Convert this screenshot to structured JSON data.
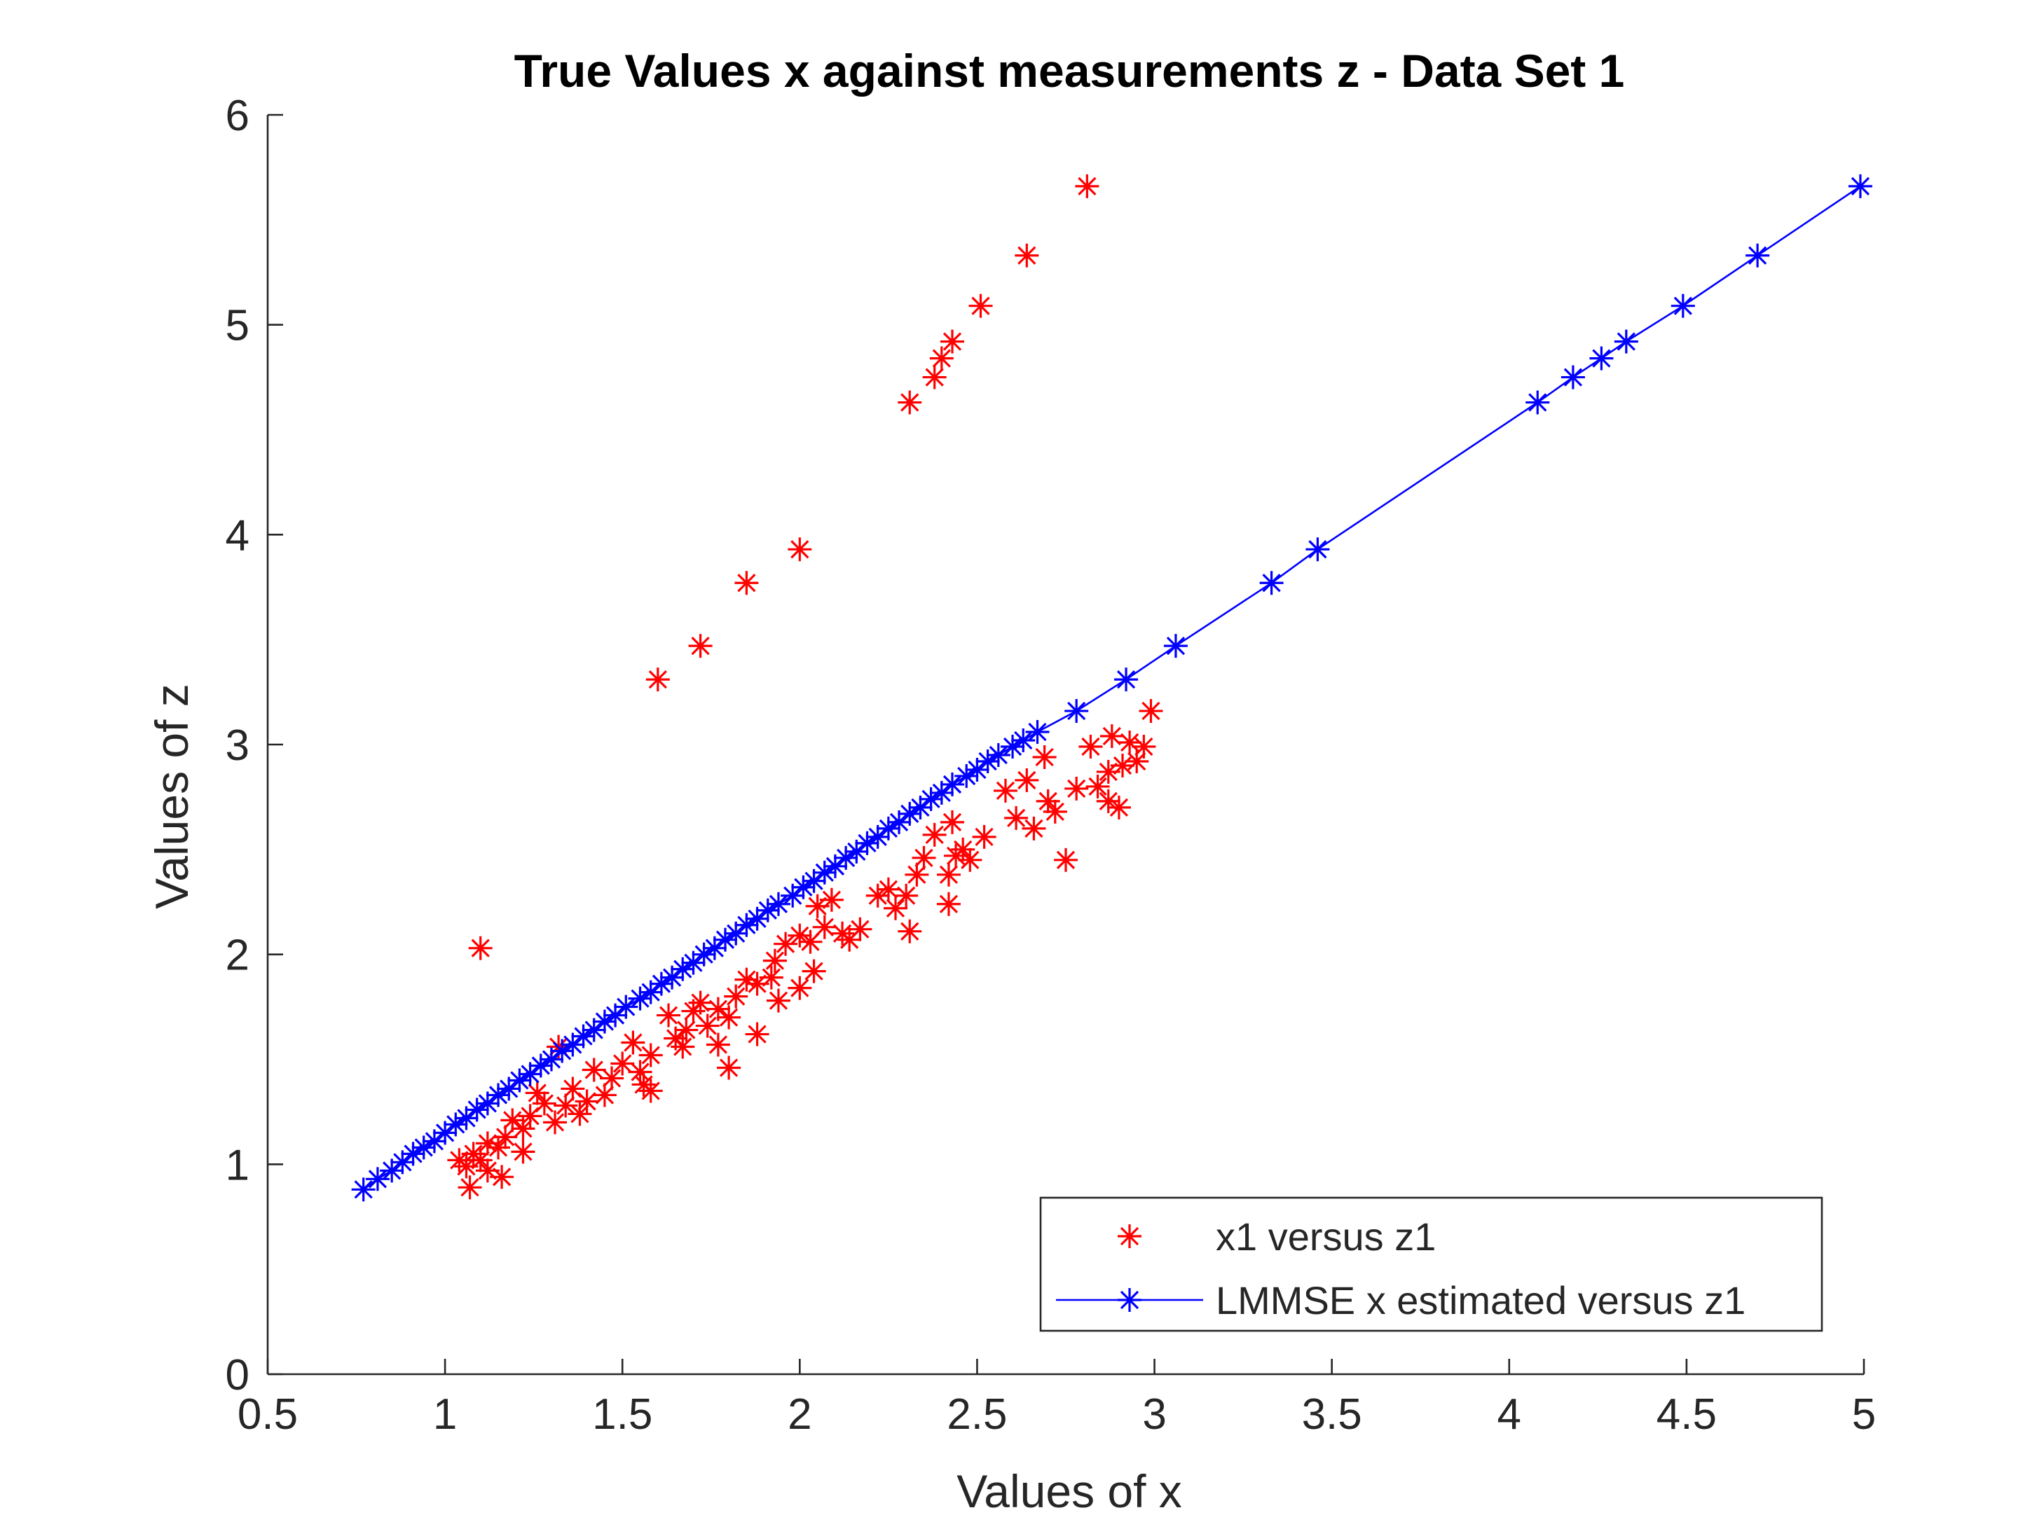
{
  "chart_data": {
    "type": "scatter",
    "title": "True Values x against measurements z - Data Set 1",
    "xlabel": "Values of x",
    "ylabel": "Values of z",
    "xlim": [
      0.5,
      5
    ],
    "ylim": [
      0,
      6
    ],
    "xticks": [
      "0.5",
      "1",
      "1.5",
      "2",
      "2.5",
      "3",
      "3.5",
      "4",
      "4.5",
      "5"
    ],
    "yticks": [
      "0",
      "1",
      "2",
      "3",
      "4",
      "5",
      "6"
    ],
    "grid": false,
    "legend_location": "bottom-right",
    "series": [
      {
        "name": "x1 versus z1",
        "color": "#ff0000",
        "marker": "asterisk",
        "line": false,
        "points": [
          [
            2.81,
            5.66
          ],
          [
            2.64,
            5.33
          ],
          [
            2.51,
            5.09
          ],
          [
            2.43,
            4.92
          ],
          [
            2.4,
            4.84
          ],
          [
            2.38,
            4.75
          ],
          [
            2.31,
            4.63
          ],
          [
            2.0,
            3.93
          ],
          [
            1.85,
            3.77
          ],
          [
            1.72,
            3.47
          ],
          [
            1.6,
            3.31
          ],
          [
            1.1,
            2.03
          ],
          [
            1.32,
            1.56
          ],
          [
            2.99,
            3.16
          ],
          [
            2.93,
            3.01
          ],
          [
            2.97,
            2.99
          ],
          [
            2.88,
            3.04
          ],
          [
            2.82,
            2.99
          ],
          [
            2.69,
            2.94
          ],
          [
            2.91,
            2.9
          ],
          [
            2.95,
            2.92
          ],
          [
            2.87,
            2.87
          ],
          [
            2.84,
            2.8
          ],
          [
            2.78,
            2.79
          ],
          [
            2.7,
            2.73
          ],
          [
            2.64,
            2.83
          ],
          [
            2.58,
            2.78
          ],
          [
            2.61,
            2.65
          ],
          [
            2.66,
            2.6
          ],
          [
            2.72,
            2.68
          ],
          [
            2.75,
            2.45
          ],
          [
            2.87,
            2.73
          ],
          [
            2.9,
            2.7
          ],
          [
            2.52,
            2.56
          ],
          [
            2.46,
            2.5
          ],
          [
            2.43,
            2.63
          ],
          [
            2.38,
            2.57
          ],
          [
            2.35,
            2.46
          ],
          [
            2.42,
            2.38
          ],
          [
            2.33,
            2.38
          ],
          [
            2.3,
            2.28
          ],
          [
            2.27,
            2.22
          ],
          [
            2.25,
            2.31
          ],
          [
            2.42,
            2.24
          ],
          [
            2.31,
            2.11
          ],
          [
            2.44,
            2.47
          ],
          [
            2.48,
            2.45
          ],
          [
            2.22,
            2.28
          ],
          [
            2.17,
            2.12
          ],
          [
            2.12,
            2.1
          ],
          [
            2.14,
            2.07
          ],
          [
            2.07,
            2.13
          ],
          [
            2.05,
            2.23
          ],
          [
            2.03,
            2.06
          ],
          [
            2.0,
            2.09
          ],
          [
            2.04,
            1.92
          ],
          [
            2.0,
            1.84
          ],
          [
            1.96,
            2.05
          ],
          [
            1.93,
            1.97
          ],
          [
            1.92,
            1.89
          ],
          [
            1.94,
            1.78
          ],
          [
            2.09,
            2.26
          ],
          [
            1.88,
            1.86
          ],
          [
            1.85,
            1.88
          ],
          [
            1.82,
            1.8
          ],
          [
            1.8,
            1.7
          ],
          [
            1.77,
            1.74
          ],
          [
            1.74,
            1.66
          ],
          [
            1.72,
            1.77
          ],
          [
            1.7,
            1.73
          ],
          [
            1.68,
            1.64
          ],
          [
            1.67,
            1.56
          ],
          [
            1.65,
            1.6
          ],
          [
            1.63,
            1.71
          ],
          [
            1.8,
            1.46
          ],
          [
            1.88,
            1.62
          ],
          [
            1.77,
            1.57
          ],
          [
            1.58,
            1.52
          ],
          [
            1.55,
            1.44
          ],
          [
            1.56,
            1.38
          ],
          [
            1.58,
            1.35
          ],
          [
            1.53,
            1.58
          ],
          [
            1.5,
            1.48
          ],
          [
            1.47,
            1.41
          ],
          [
            1.45,
            1.33
          ],
          [
            1.42,
            1.45
          ],
          [
            1.4,
            1.3
          ],
          [
            1.38,
            1.24
          ],
          [
            1.36,
            1.36
          ],
          [
            1.34,
            1.28
          ],
          [
            1.31,
            1.2
          ],
          [
            1.28,
            1.29
          ],
          [
            1.26,
            1.34
          ],
          [
            1.24,
            1.23
          ],
          [
            1.22,
            1.17
          ],
          [
            1.22,
            1.06
          ],
          [
            1.19,
            1.21
          ],
          [
            1.17,
            1.13
          ],
          [
            1.15,
            1.08
          ],
          [
            1.16,
            0.94
          ],
          [
            1.12,
            1.1
          ],
          [
            1.1,
            1.02
          ],
          [
            1.08,
            1.05
          ],
          [
            1.06,
            0.99
          ],
          [
            1.07,
            0.89
          ],
          [
            1.04,
            1.02
          ],
          [
            1.12,
            0.97
          ]
        ]
      },
      {
        "name": "LMMSE x estimated versus z1",
        "color": "#0000ff",
        "marker": "asterisk",
        "line": true,
        "points": [
          [
            0.77,
            0.88
          ],
          [
            0.81,
            0.93
          ],
          [
            0.85,
            0.97
          ],
          [
            0.88,
            1.01
          ],
          [
            0.91,
            1.05
          ],
          [
            0.94,
            1.08
          ],
          [
            0.97,
            1.11
          ],
          [
            1.0,
            1.15
          ],
          [
            1.03,
            1.19
          ],
          [
            1.06,
            1.22
          ],
          [
            1.09,
            1.26
          ],
          [
            1.12,
            1.29
          ],
          [
            1.15,
            1.33
          ],
          [
            1.18,
            1.36
          ],
          [
            1.21,
            1.4
          ],
          [
            1.24,
            1.43
          ],
          [
            1.27,
            1.47
          ],
          [
            1.3,
            1.5
          ],
          [
            1.33,
            1.54
          ],
          [
            1.36,
            1.57
          ],
          [
            1.39,
            1.61
          ],
          [
            1.42,
            1.64
          ],
          [
            1.45,
            1.68
          ],
          [
            1.48,
            1.71
          ],
          [
            1.51,
            1.75
          ],
          [
            1.55,
            1.79
          ],
          [
            1.58,
            1.82
          ],
          [
            1.61,
            1.86
          ],
          [
            1.64,
            1.89
          ],
          [
            1.67,
            1.93
          ],
          [
            1.7,
            1.96
          ],
          [
            1.73,
            2.0
          ],
          [
            1.76,
            2.03
          ],
          [
            1.79,
            2.07
          ],
          [
            1.82,
            2.1
          ],
          [
            1.85,
            2.14
          ],
          [
            1.88,
            2.17
          ],
          [
            1.91,
            2.21
          ],
          [
            1.94,
            2.24
          ],
          [
            1.98,
            2.28
          ],
          [
            2.01,
            2.32
          ],
          [
            2.04,
            2.35
          ],
          [
            2.07,
            2.39
          ],
          [
            2.1,
            2.42
          ],
          [
            2.13,
            2.46
          ],
          [
            2.16,
            2.49
          ],
          [
            2.19,
            2.53
          ],
          [
            2.22,
            2.56
          ],
          [
            2.25,
            2.6
          ],
          [
            2.28,
            2.63
          ],
          [
            2.31,
            2.67
          ],
          [
            2.34,
            2.7
          ],
          [
            2.37,
            2.74
          ],
          [
            2.4,
            2.77
          ],
          [
            2.43,
            2.81
          ],
          [
            2.47,
            2.85
          ],
          [
            2.5,
            2.88
          ],
          [
            2.53,
            2.92
          ],
          [
            2.56,
            2.95
          ],
          [
            2.6,
            2.99
          ],
          [
            2.63,
            3.02
          ],
          [
            2.67,
            3.06
          ],
          [
            2.78,
            3.16
          ],
          [
            2.92,
            3.31
          ],
          [
            3.06,
            3.47
          ],
          [
            3.33,
            3.77
          ],
          [
            3.46,
            3.93
          ],
          [
            4.08,
            4.63
          ],
          [
            4.18,
            4.75
          ],
          [
            4.26,
            4.84
          ],
          [
            4.33,
            4.92
          ],
          [
            4.49,
            5.09
          ],
          [
            4.7,
            5.33
          ],
          [
            4.99,
            5.66
          ]
        ]
      }
    ]
  }
}
